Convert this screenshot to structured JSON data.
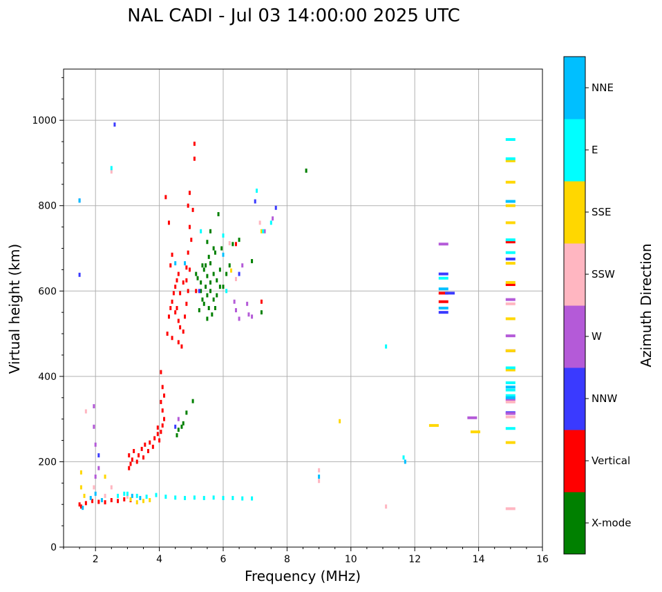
{
  "chart_data": {
    "type": "scatter",
    "title": "NAL CADI - Jul 03 14:00:00 2025 UTC",
    "xlabel": "Frequency (MHz)",
    "ylabel": "Virtual height (km)",
    "xlim": [
      1,
      16
    ],
    "ylim": [
      0,
      1120
    ],
    "xticks": [
      2,
      4,
      6,
      8,
      10,
      12,
      14,
      16
    ],
    "yticks": [
      0,
      200,
      400,
      600,
      800,
      1000
    ],
    "grid": true,
    "colorbar": {
      "label": "Azimuth Direction",
      "categories": [
        {
          "name": "X-mode",
          "color": "#008000"
        },
        {
          "name": "Vertical",
          "color": "#ff0000"
        },
        {
          "name": "NNW",
          "color": "#3a3aff"
        },
        {
          "name": "W",
          "color": "#b45ad8"
        },
        {
          "name": "SSW",
          "color": "#ffb6c1"
        },
        {
          "name": "SSE",
          "color": "#ffd700"
        },
        {
          "name": "E",
          "color": "#00ffff"
        },
        {
          "name": "NNE",
          "color": "#00bfff"
        }
      ]
    },
    "series": [
      {
        "name": "X-mode",
        "points": [
          [
            5.05,
            342
          ],
          [
            4.85,
            315
          ],
          [
            4.75,
            290
          ],
          [
            4.6,
            275
          ],
          [
            4.55,
            262
          ],
          [
            4.7,
            282
          ],
          [
            5.6,
            740
          ],
          [
            5.5,
            715
          ],
          [
            5.7,
            700
          ],
          [
            5.55,
            680
          ],
          [
            5.6,
            665
          ],
          [
            5.4,
            650
          ],
          [
            5.5,
            635
          ],
          [
            5.3,
            620
          ],
          [
            5.45,
            610
          ],
          [
            5.6,
            600
          ],
          [
            5.5,
            590
          ],
          [
            5.7,
            580
          ],
          [
            5.4,
            570
          ],
          [
            5.55,
            560
          ],
          [
            5.65,
            545
          ],
          [
            5.5,
            535
          ],
          [
            5.3,
            600
          ],
          [
            5.2,
            630
          ],
          [
            5.35,
            580
          ],
          [
            5.8,
            590
          ],
          [
            5.9,
            610
          ],
          [
            5.75,
            560
          ],
          [
            5.25,
            555
          ],
          [
            5.6,
            620
          ],
          [
            5.45,
            660
          ],
          [
            5.7,
            640
          ],
          [
            5.8,
            625
          ],
          [
            5.15,
            640
          ],
          [
            5.35,
            660
          ],
          [
            5.75,
            690
          ],
          [
            5.9,
            650
          ],
          [
            6.0,
            610
          ],
          [
            6.1,
            640
          ],
          [
            6.2,
            660
          ],
          [
            5.95,
            700
          ],
          [
            5.85,
            780
          ],
          [
            6.3,
            710
          ],
          [
            6.5,
            720
          ],
          [
            6.9,
            670
          ],
          [
            7.2,
            550
          ],
          [
            8.6,
            882
          ]
        ]
      },
      {
        "name": "Vertical",
        "points": [
          [
            1.5,
            100
          ],
          [
            1.55,
            95
          ],
          [
            1.7,
            103
          ],
          [
            1.9,
            108
          ],
          [
            2.1,
            106
          ],
          [
            2.3,
            105
          ],
          [
            2.5,
            110
          ],
          [
            2.7,
            108
          ],
          [
            2.9,
            112
          ],
          [
            3.1,
            110
          ],
          [
            3.05,
            185
          ],
          [
            3.1,
            195
          ],
          [
            3.15,
            205
          ],
          [
            3.05,
            215
          ],
          [
            3.2,
            225
          ],
          [
            3.3,
            200
          ],
          [
            3.35,
            215
          ],
          [
            3.45,
            230
          ],
          [
            3.5,
            210
          ],
          [
            3.55,
            240
          ],
          [
            3.65,
            225
          ],
          [
            3.7,
            245
          ],
          [
            3.8,
            235
          ],
          [
            3.85,
            255
          ],
          [
            3.95,
            265
          ],
          [
            4.0,
            250
          ],
          [
            4.05,
            270
          ],
          [
            4.1,
            285
          ],
          [
            3.95,
            280
          ],
          [
            4.15,
            300
          ],
          [
            4.1,
            320
          ],
          [
            4.05,
            340
          ],
          [
            4.15,
            355
          ],
          [
            4.1,
            375
          ],
          [
            4.05,
            410
          ],
          [
            4.25,
            500
          ],
          [
            4.3,
            540
          ],
          [
            4.35,
            560
          ],
          [
            4.4,
            575
          ],
          [
            4.45,
            595
          ],
          [
            4.5,
            610
          ],
          [
            4.55,
            625
          ],
          [
            4.6,
            640
          ],
          [
            4.35,
            660
          ],
          [
            4.4,
            685
          ],
          [
            4.5,
            550
          ],
          [
            4.6,
            530
          ],
          [
            4.65,
            515
          ],
          [
            4.75,
            505
          ],
          [
            4.8,
            540
          ],
          [
            4.85,
            570
          ],
          [
            4.9,
            600
          ],
          [
            4.85,
            625
          ],
          [
            4.95,
            650
          ],
          [
            4.9,
            690
          ],
          [
            5.0,
            720
          ],
          [
            4.95,
            750
          ],
          [
            5.05,
            790
          ],
          [
            4.9,
            800
          ],
          [
            4.95,
            830
          ],
          [
            5.1,
            910
          ],
          [
            5.1,
            945
          ],
          [
            4.2,
            820
          ],
          [
            4.3,
            760
          ],
          [
            4.6,
            480
          ],
          [
            4.7,
            470
          ],
          [
            4.4,
            490
          ],
          [
            4.55,
            560
          ],
          [
            4.65,
            595
          ],
          [
            4.75,
            620
          ],
          [
            4.85,
            655
          ],
          [
            5.15,
            600
          ],
          [
            6.4,
            710
          ],
          [
            7.2,
            575
          ],
          [
            12.9,
            575
          ],
          [
            12.9,
            595
          ],
          [
            15.0,
            615
          ],
          [
            15.0,
            715
          ]
        ]
      },
      {
        "name": "NNW",
        "points": [
          [
            1.5,
            812
          ],
          [
            1.5,
            638
          ],
          [
            2.6,
            990
          ],
          [
            4.5,
            282
          ],
          [
            5.25,
            600
          ],
          [
            6.5,
            640
          ],
          [
            7.0,
            810
          ],
          [
            7.65,
            795
          ],
          [
            12.9,
            550
          ],
          [
            12.9,
            640
          ],
          [
            15.0,
            675
          ],
          [
            15.0,
            315
          ],
          [
            13.1,
            595
          ],
          [
            2.1,
            215
          ]
        ]
      },
      {
        "name": "W",
        "points": [
          [
            1.95,
            330
          ],
          [
            1.95,
            282
          ],
          [
            2.0,
            240
          ],
          [
            4.6,
            300
          ],
          [
            6.35,
            575
          ],
          [
            6.4,
            555
          ],
          [
            6.5,
            535
          ],
          [
            6.75,
            570
          ],
          [
            6.8,
            545
          ],
          [
            6.9,
            540
          ],
          [
            6.6,
            660
          ],
          [
            7.3,
            740
          ],
          [
            7.55,
            770
          ],
          [
            12.9,
            710
          ],
          [
            13.8,
            303
          ],
          [
            15.0,
            580
          ],
          [
            15.0,
            495
          ],
          [
            15.0,
            460
          ],
          [
            15.0,
            345
          ],
          [
            15.0,
            313
          ],
          [
            2.0,
            165
          ],
          [
            2.1,
            185
          ]
        ]
      },
      {
        "name": "SSW",
        "points": [
          [
            2.5,
            880
          ],
          [
            6.2,
            712
          ],
          [
            6.4,
            628
          ],
          [
            7.15,
            760
          ],
          [
            9.0,
            180
          ],
          [
            9.0,
            155
          ],
          [
            11.1,
            95
          ],
          [
            15.0,
            90
          ],
          [
            15.0,
            305
          ],
          [
            15.0,
            340
          ],
          [
            15.0,
            570
          ],
          [
            1.7,
            318
          ],
          [
            1.95,
            140
          ],
          [
            2.5,
            140
          ],
          [
            2.3,
            120
          ],
          [
            3.0,
            118
          ]
        ]
      },
      {
        "name": "SSE",
        "points": [
          [
            1.55,
            175
          ],
          [
            1.55,
            140
          ],
          [
            1.65,
            120
          ],
          [
            2.3,
            165
          ],
          [
            2.2,
            110
          ],
          [
            3.1,
            112
          ],
          [
            3.3,
            105
          ],
          [
            3.5,
            108
          ],
          [
            3.7,
            110
          ],
          [
            7.2,
            740
          ],
          [
            9.65,
            295
          ],
          [
            13.9,
            270
          ],
          [
            15.0,
            245
          ],
          [
            15.0,
            415
          ],
          [
            15.0,
            460
          ],
          [
            15.0,
            535
          ],
          [
            15.0,
            620
          ],
          [
            15.0,
            665
          ],
          [
            15.0,
            760
          ],
          [
            15.0,
            800
          ],
          [
            15.0,
            855
          ],
          [
            15.0,
            905
          ],
          [
            6.25,
            648
          ],
          [
            12.6,
            285
          ]
        ]
      },
      {
        "name": "E",
        "points": [
          [
            2.5,
            888
          ],
          [
            5.3,
            740
          ],
          [
            6.0,
            730
          ],
          [
            6.1,
            600
          ],
          [
            7.05,
            835
          ],
          [
            7.25,
            740
          ],
          [
            7.5,
            760
          ],
          [
            11.1,
            470
          ],
          [
            11.65,
            210
          ],
          [
            12.9,
            630
          ],
          [
            15.0,
            955
          ],
          [
            15.0,
            910
          ],
          [
            15.0,
            810
          ],
          [
            15.0,
            720
          ],
          [
            15.0,
            690
          ],
          [
            15.0,
            420
          ],
          [
            15.0,
            385
          ],
          [
            15.0,
            368
          ],
          [
            15.0,
            355
          ],
          [
            15.0,
            278
          ],
          [
            3.0,
            125
          ],
          [
            3.3,
            120
          ],
          [
            3.6,
            118
          ],
          [
            3.9,
            122
          ],
          [
            4.2,
            118
          ],
          [
            4.5,
            116
          ],
          [
            4.8,
            115
          ],
          [
            5.1,
            116
          ],
          [
            5.4,
            115
          ],
          [
            5.7,
            116
          ],
          [
            6.0,
            115
          ],
          [
            6.3,
            115
          ],
          [
            6.6,
            114
          ],
          [
            6.9,
            114
          ],
          [
            2.7,
            120
          ],
          [
            2.9,
            125
          ]
        ]
      },
      {
        "name": "NNE",
        "points": [
          [
            1.5,
            812
          ],
          [
            2.0,
            125
          ],
          [
            1.85,
            115
          ],
          [
            2.2,
            110
          ],
          [
            3.15,
            120
          ],
          [
            3.4,
            115
          ],
          [
            4.5,
            665
          ],
          [
            4.8,
            665
          ],
          [
            6.0,
            685
          ],
          [
            9.0,
            165
          ],
          [
            11.7,
            200
          ],
          [
            12.9,
            605
          ],
          [
            12.9,
            560
          ],
          [
            15.0,
            810
          ],
          [
            15.0,
            375
          ],
          [
            15.0,
            350
          ],
          [
            1.6,
            92
          ]
        ]
      }
    ]
  }
}
